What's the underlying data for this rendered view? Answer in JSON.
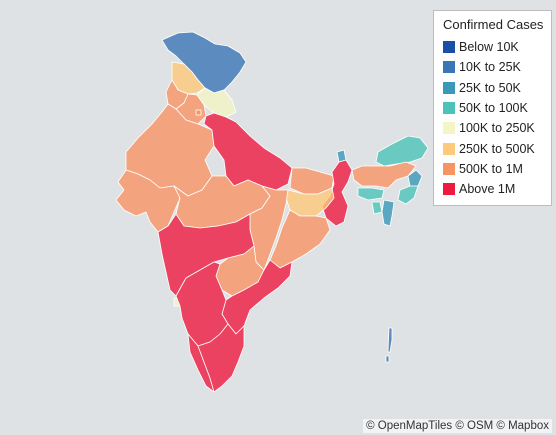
{
  "legend": {
    "title": "Confirmed Cases",
    "items": [
      {
        "label": "Below 10K",
        "color": "#1a4fa8"
      },
      {
        "label": "10K to 25K",
        "color": "#3a75b5"
      },
      {
        "label": "25K to 50K",
        "color": "#3a99b8"
      },
      {
        "label": "50K to 100K",
        "color": "#4cc3b8"
      },
      {
        "label": "100K to 250K",
        "color": "#f3f5c4"
      },
      {
        "label": "250K to 500K",
        "color": "#fdc97a"
      },
      {
        "label": "500K to 1M",
        "color": "#f79464"
      },
      {
        "label": "Above 1M",
        "color": "#ee1a40"
      }
    ]
  },
  "map": {
    "background_color": "#dfe2e5",
    "regions": [
      {
        "name": "Jammu and Kashmir",
        "category": "10K to 25K"
      },
      {
        "name": "Himachal Pradesh",
        "category": "250K to 500K"
      },
      {
        "name": "Uttarakhand",
        "category": "100K to 250K"
      },
      {
        "name": "Punjab",
        "category": "500K to 1M"
      },
      {
        "name": "Haryana",
        "category": "500K to 1M"
      },
      {
        "name": "Delhi",
        "category": "500K to 1M"
      },
      {
        "name": "Rajasthan",
        "category": "500K to 1M"
      },
      {
        "name": "Uttar Pradesh",
        "category": "Above 1M"
      },
      {
        "name": "Bihar",
        "category": "500K to 1M"
      },
      {
        "name": "Gujarat",
        "category": "500K to 1M"
      },
      {
        "name": "Madhya Pradesh",
        "category": "500K to 1M"
      },
      {
        "name": "Jharkhand",
        "category": "250K to 500K"
      },
      {
        "name": "West Bengal",
        "category": "Above 1M"
      },
      {
        "name": "Chhattisgarh",
        "category": "500K to 1M"
      },
      {
        "name": "Odisha",
        "category": "500K to 1M"
      },
      {
        "name": "Maharashtra",
        "category": "Above 1M"
      },
      {
        "name": "Telangana",
        "category": "500K to 1M"
      },
      {
        "name": "Andhra Pradesh",
        "category": "Above 1M"
      },
      {
        "name": "Goa",
        "category": "100K to 250K"
      },
      {
        "name": "Karnataka",
        "category": "Above 1M"
      },
      {
        "name": "Kerala",
        "category": "Above 1M"
      },
      {
        "name": "Tamil Nadu",
        "category": "Above 1M"
      },
      {
        "name": "Sikkim",
        "category": "25K to 50K"
      },
      {
        "name": "Arunachal Pradesh",
        "category": "50K to 100K"
      },
      {
        "name": "Assam",
        "category": "500K to 1M"
      },
      {
        "name": "Nagaland",
        "category": "25K to 50K"
      },
      {
        "name": "Meghalaya",
        "category": "50K to 100K"
      },
      {
        "name": "Manipur",
        "category": "50K to 100K"
      },
      {
        "name": "Tripura",
        "category": "50K to 100K"
      },
      {
        "name": "Mizoram",
        "category": "25K to 50K"
      },
      {
        "name": "Andaman and Nicobar Islands",
        "category": "10K to 25K"
      }
    ]
  },
  "attribution": "© OpenMapTiles © OSM © Mapbox"
}
